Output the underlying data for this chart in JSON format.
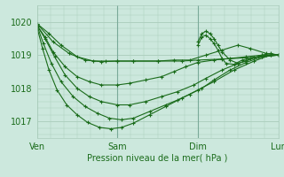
{
  "background_color": "#cce8dd",
  "grid_color": "#aaccbb",
  "line_color": "#1a6b1a",
  "marker_color": "#1a6b1a",
  "xlabel": "Pression niveau de la mer( hPa )",
  "xlim": [
    0,
    3
  ],
  "ylim": [
    1016.5,
    1020.5
  ],
  "yticks": [
    1017,
    1018,
    1019,
    1020
  ],
  "xtick_labels": [
    "Ven",
    "Sam",
    "Dim",
    "Lun"
  ],
  "xtick_positions": [
    0,
    1,
    2,
    3
  ],
  "series": [
    {
      "x": [
        0.0,
        0.2,
        0.4,
        0.6,
        0.8,
        1.0,
        1.2,
        1.5,
        1.8,
        2.0,
        2.3,
        2.6,
        2.8,
        3.0
      ],
      "y": [
        1019.95,
        1019.4,
        1019.05,
        1018.85,
        1018.8,
        1018.82,
        1018.82,
        1018.82,
        1018.82,
        1018.85,
        1018.88,
        1018.92,
        1018.95,
        1019.0
      ]
    },
    {
      "x": [
        0.0,
        0.15,
        0.3,
        0.5,
        0.7,
        0.85,
        1.0,
        1.2,
        1.5,
        1.7,
        1.9,
        2.1,
        2.3,
        2.5,
        2.65,
        2.85,
        3.0
      ],
      "y": [
        1019.95,
        1019.65,
        1019.3,
        1018.95,
        1018.82,
        1018.82,
        1018.82,
        1018.82,
        1018.82,
        1018.85,
        1018.85,
        1019.0,
        1019.15,
        1019.3,
        1019.2,
        1019.05,
        1019.0
      ]
    },
    {
      "x": [
        0.0,
        0.1,
        0.2,
        0.35,
        0.5,
        0.65,
        0.8,
        1.0,
        1.15,
        1.35,
        1.55,
        1.7,
        1.85,
        2.0,
        2.2,
        2.4,
        2.6,
        2.8,
        3.0
      ],
      "y": [
        1019.9,
        1019.55,
        1019.1,
        1018.65,
        1018.35,
        1018.2,
        1018.1,
        1018.1,
        1018.15,
        1018.25,
        1018.35,
        1018.5,
        1018.65,
        1018.78,
        1018.85,
        1018.9,
        1018.95,
        1019.0,
        1019.0
      ]
    },
    {
      "x": [
        0.0,
        0.1,
        0.22,
        0.35,
        0.5,
        0.65,
        0.8,
        1.0,
        1.15,
        1.35,
        1.55,
        1.75,
        1.95,
        2.1,
        2.3,
        2.5,
        2.7,
        2.9,
        3.0
      ],
      "y": [
        1019.9,
        1019.5,
        1018.95,
        1018.4,
        1018.0,
        1017.75,
        1017.6,
        1017.5,
        1017.5,
        1017.6,
        1017.75,
        1017.9,
        1018.1,
        1018.3,
        1018.55,
        1018.75,
        1018.92,
        1019.0,
        1019.0
      ]
    },
    {
      "x": [
        0.0,
        0.08,
        0.18,
        0.3,
        0.45,
        0.6,
        0.75,
        0.9,
        1.05,
        1.2,
        1.4,
        1.6,
        1.75,
        1.9,
        2.05,
        2.2,
        2.4,
        2.6,
        2.8,
        3.0
      ],
      "y": [
        1019.9,
        1019.35,
        1018.75,
        1018.2,
        1017.75,
        1017.45,
        1017.25,
        1017.1,
        1017.05,
        1017.1,
        1017.3,
        1017.5,
        1017.65,
        1017.82,
        1018.0,
        1018.25,
        1018.55,
        1018.78,
        1018.95,
        1019.0
      ]
    },
    {
      "x": [
        0.0,
        0.07,
        0.15,
        0.25,
        0.37,
        0.5,
        0.63,
        0.78,
        0.92,
        1.05,
        1.2,
        1.4,
        1.6,
        1.8,
        2.0,
        2.2,
        2.45,
        2.7,
        2.9,
        3.0
      ],
      "y": [
        1019.85,
        1019.2,
        1018.55,
        1017.95,
        1017.5,
        1017.2,
        1016.97,
        1016.82,
        1016.78,
        1016.82,
        1016.95,
        1017.2,
        1017.45,
        1017.7,
        1017.95,
        1018.2,
        1018.55,
        1018.82,
        1019.0,
        1019.0
      ]
    },
    {
      "x": [
        2.0,
        2.05,
        2.1,
        2.15,
        2.2,
        2.25,
        2.3,
        2.35,
        2.45,
        2.55,
        2.65,
        2.75,
        2.85,
        3.0
      ],
      "y": [
        1019.3,
        1019.55,
        1019.6,
        1019.5,
        1019.35,
        1019.15,
        1018.9,
        1018.75,
        1018.72,
        1018.85,
        1018.9,
        1018.95,
        1019.0,
        1019.0
      ]
    },
    {
      "x": [
        2.0,
        2.05,
        2.1,
        2.15,
        2.2,
        2.25,
        2.3,
        2.4,
        2.5,
        2.6,
        2.7,
        2.8,
        2.9,
        3.0
      ],
      "y": [
        1019.4,
        1019.65,
        1019.72,
        1019.65,
        1019.5,
        1019.3,
        1019.1,
        1018.85,
        1018.75,
        1018.82,
        1018.92,
        1019.0,
        1019.05,
        1019.0
      ]
    }
  ]
}
